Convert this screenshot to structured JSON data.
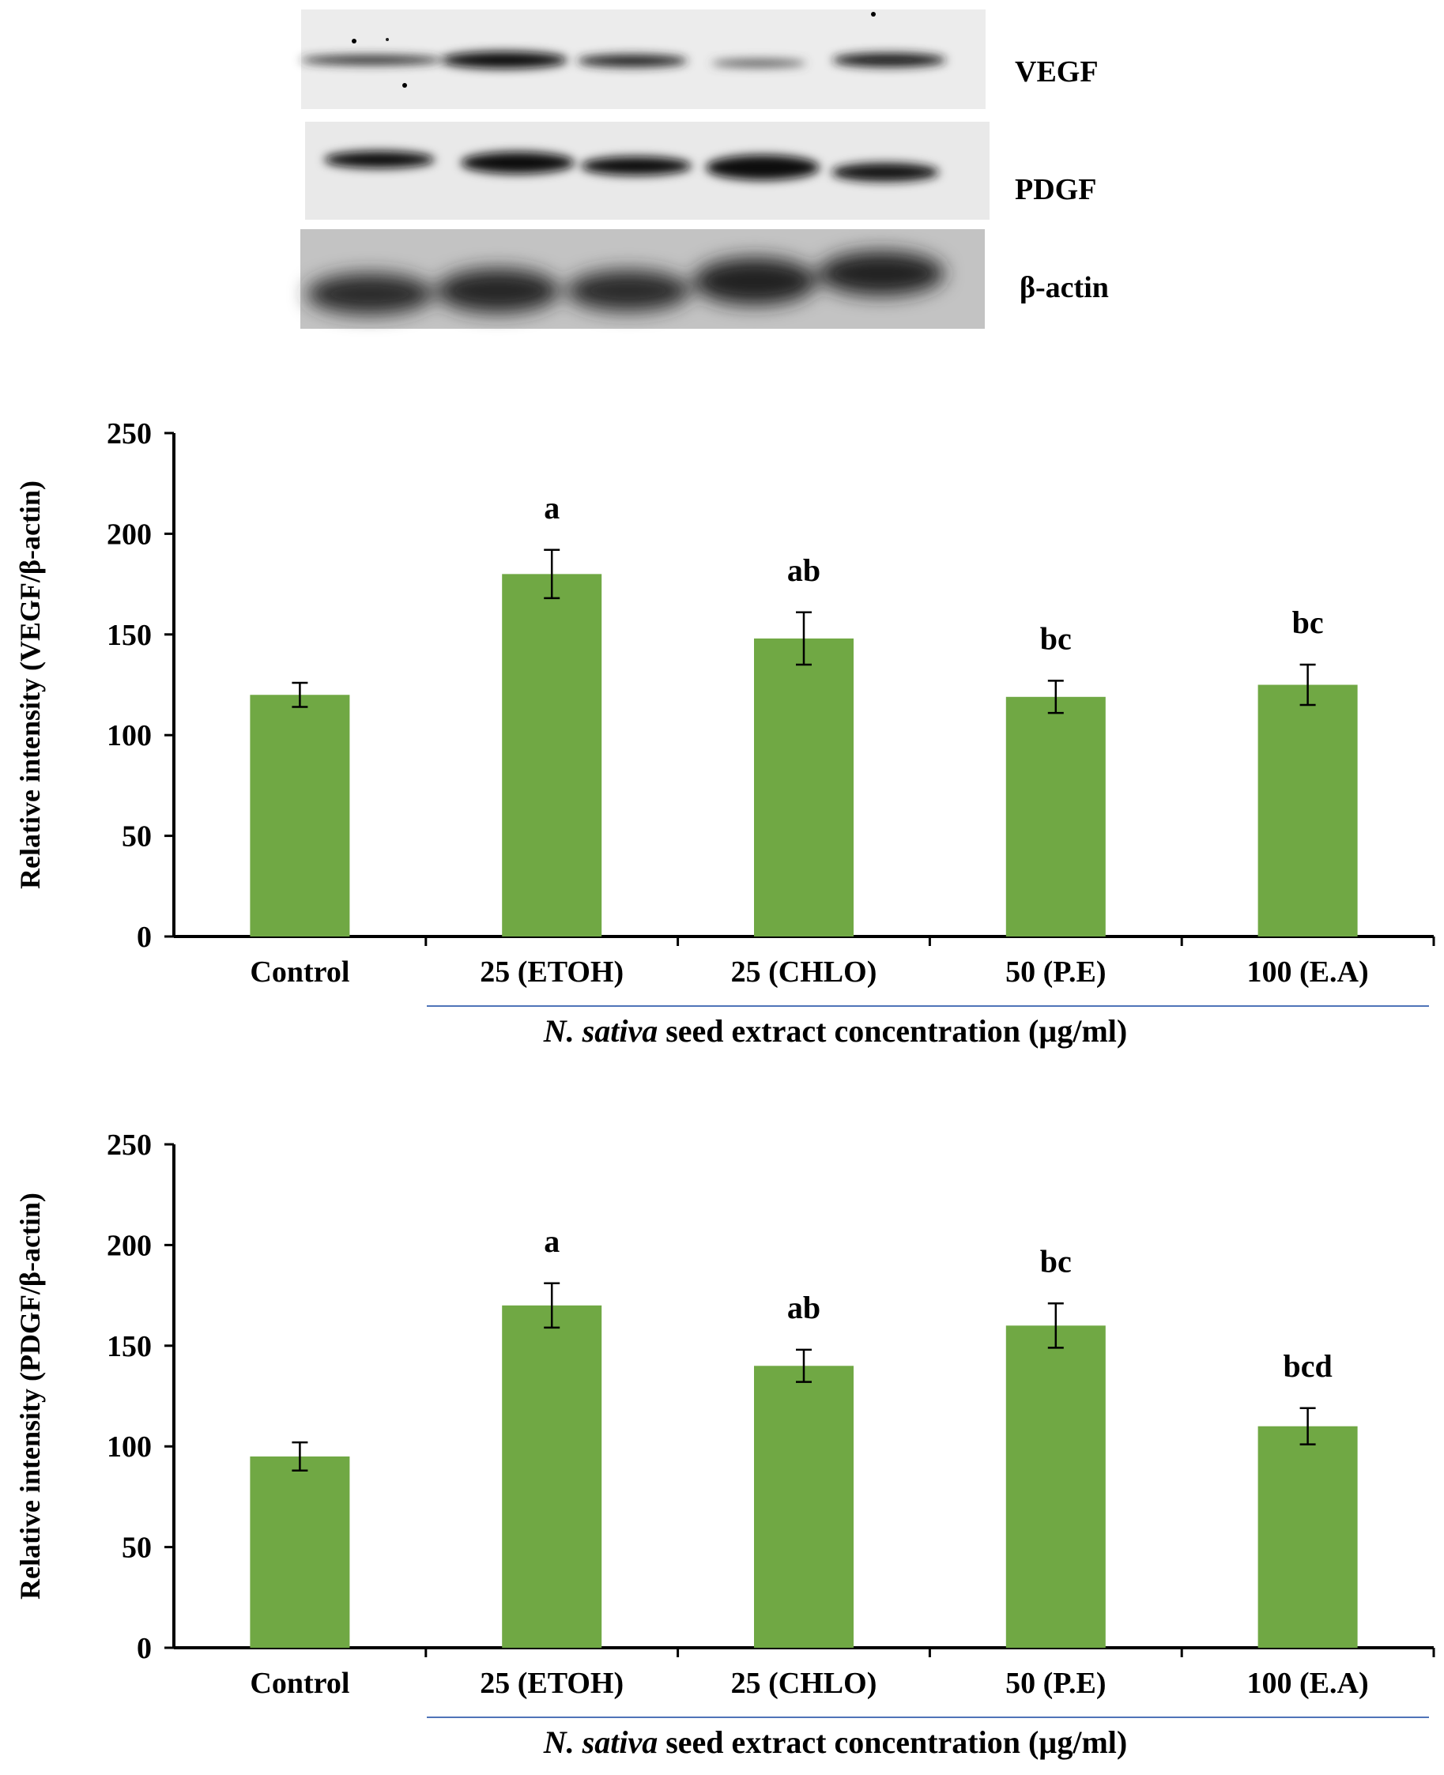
{
  "blot": {
    "labels": [
      "VEGF",
      "PDGF",
      "β-actin"
    ],
    "colors": {
      "background_light": "#ebebeb",
      "band_dark": "#151515"
    }
  },
  "chart_data": [
    {
      "type": "bar",
      "categories": [
        "Control",
        "25 (ETOH)",
        "25 (CHLO)",
        "50 (P.E)",
        "100 (E.A)"
      ],
      "values": [
        120,
        180,
        148,
        119,
        125
      ],
      "errors": [
        6,
        12,
        13,
        8,
        10
      ],
      "annotations": [
        "",
        "a",
        "ab",
        "bc",
        "bc"
      ],
      "ylabel": "Relative intensity (VEGF/β-actin)",
      "xlabel_italic": "N. sativa",
      "xlabel_rest": " seed extract concentration (µg/ml)",
      "ylim": [
        0,
        250
      ],
      "yticks": [
        0,
        50,
        100,
        150,
        200,
        250
      ],
      "bar_color": "#70a844",
      "underline_color": "#4f74b8",
      "grid": false
    },
    {
      "type": "bar",
      "categories": [
        "Control",
        "25 (ETOH)",
        "25 (CHLO)",
        "50 (P.E)",
        "100 (E.A)"
      ],
      "values": [
        95,
        170,
        140,
        160,
        110
      ],
      "errors": [
        7,
        11,
        8,
        11,
        9
      ],
      "annotations": [
        "",
        "a",
        "ab",
        "bc",
        "bcd"
      ],
      "ylabel": "Relative intensity (PDGF/β-actin)",
      "xlabel_italic": "N. sativa",
      "xlabel_rest": " seed extract concentration (µg/ml)",
      "ylim": [
        0,
        250
      ],
      "yticks": [
        0,
        50,
        100,
        150,
        200,
        250
      ],
      "bar_color": "#70a844",
      "underline_color": "#4f74b8",
      "grid": false
    }
  ]
}
